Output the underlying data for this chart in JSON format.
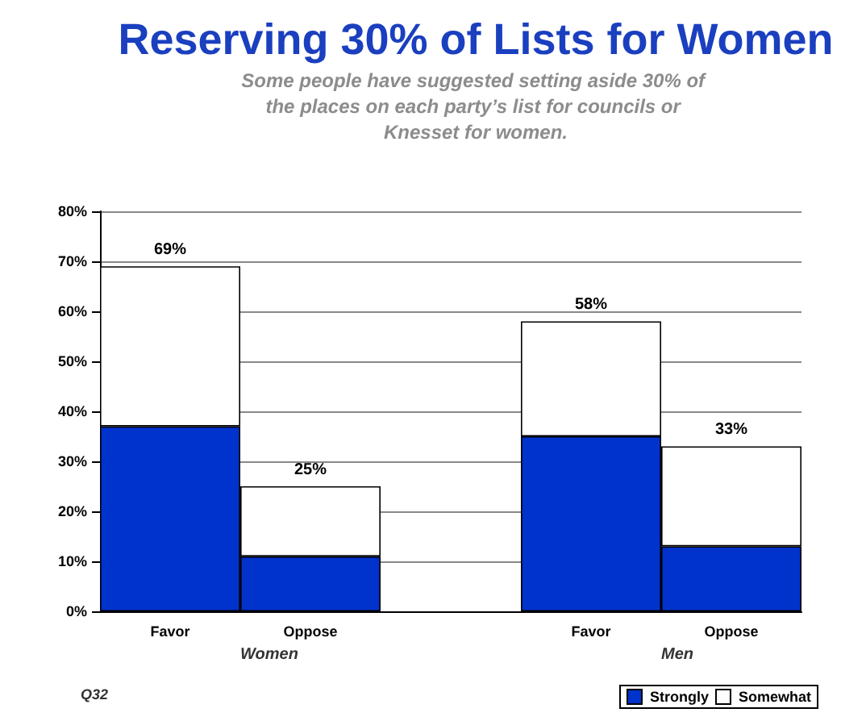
{
  "chart_data": {
    "type": "bar",
    "title": "Reserving 30% of Lists for Women",
    "subtitle": "Some people have suggested setting aside 30% of the places on each party’s list for councils or Knesset for women.",
    "categories": [
      "Favor",
      "Oppose",
      null,
      "Favor",
      "Oppose"
    ],
    "series": [
      {
        "name": "Strongly",
        "color": "#0033cc",
        "values": [
          37,
          11,
          null,
          35,
          13
        ]
      },
      {
        "name": "Somewhat",
        "color": "#ffffff",
        "values": [
          32,
          14,
          null,
          23,
          20
        ]
      }
    ],
    "stacked": true,
    "totals": [
      "69%",
      "25%",
      null,
      "58%",
      "33%"
    ],
    "ylim": [
      0,
      80
    ],
    "yticks": [
      {
        "value": 0,
        "label": "0%"
      },
      {
        "value": 10,
        "label": "10%"
      },
      {
        "value": 20,
        "label": "20%"
      },
      {
        "value": 30,
        "label": "30%"
      },
      {
        "value": 40,
        "label": "40%"
      },
      {
        "value": 50,
        "label": "50%"
      },
      {
        "value": 60,
        "label": "60%"
      },
      {
        "value": 70,
        "label": "70%"
      },
      {
        "value": 80,
        "label": "80%"
      }
    ],
    "grid": "y",
    "legend": "bottom right",
    "annotations": [
      "Women",
      "Men",
      "Q32"
    ]
  }
}
